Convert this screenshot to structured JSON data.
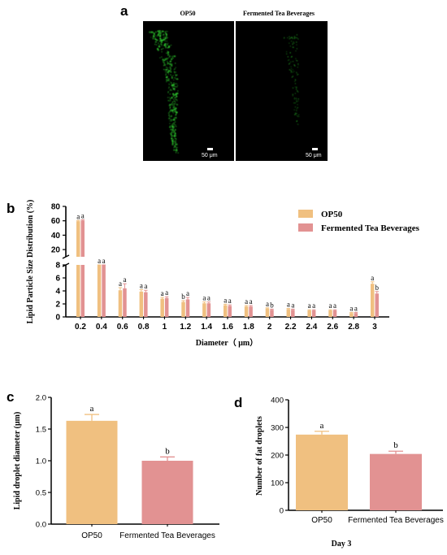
{
  "colors": {
    "op50": "#f0c080",
    "tea": "#e29292",
    "axis": "#000000",
    "fluorescence": "#2fd02f"
  },
  "panel_a": {
    "letter": "a",
    "left_title": "OP50",
    "right_title": "Fermented Tea Beverages",
    "scale_bar_label": "50 μm"
  },
  "chart_data": [
    {
      "id": "b",
      "panel_letter": "b",
      "type": "bar",
      "ylabel": "Lipid Particle Size Distribution (%)",
      "xlabel": "Diameter（ μm）",
      "categories": [
        "0.2",
        "0.4",
        "0.6",
        "0.8",
        "1",
        "1.2",
        "1.4",
        "1.6",
        "1.8",
        "2",
        "2.2",
        "2.4",
        "2.6",
        "2.8",
        "3"
      ],
      "series": [
        {
          "name": "OP50",
          "values": [
            59.5,
            8.0,
            4.1,
            3.9,
            2.8,
            2.3,
            2.1,
            1.8,
            1.6,
            1.3,
            1.2,
            1.0,
            1.0,
            0.6,
            5.1
          ],
          "errors": [
            1.0,
            0.4,
            0.4,
            0.3,
            0.2,
            0.2,
            0.2,
            0.15,
            0.15,
            0.1,
            0.1,
            0.1,
            0.1,
            0.1,
            0.3
          ]
        },
        {
          "name": "Fermented Tea Beverages",
          "values": [
            60.5,
            8.0,
            4.4,
            3.8,
            2.9,
            2.7,
            2.1,
            1.7,
            1.6,
            1.1,
            1.1,
            1.0,
            1.0,
            0.6,
            3.6
          ],
          "errors": [
            1.0,
            0.4,
            0.7,
            0.3,
            0.2,
            0.3,
            0.2,
            0.15,
            0.15,
            0.1,
            0.1,
            0.1,
            0.1,
            0.1,
            0.3
          ]
        }
      ],
      "significance": [
        [
          "a",
          "a"
        ],
        [
          "a",
          "a"
        ],
        [
          "a",
          "a"
        ],
        [
          "a",
          "a"
        ],
        [
          "a",
          "a"
        ],
        [
          "b",
          "a"
        ],
        [
          "a",
          "a"
        ],
        [
          "a",
          "a"
        ],
        [
          "a",
          "a"
        ],
        [
          "a",
          "b"
        ],
        [
          "a",
          "a"
        ],
        [
          "a",
          "a"
        ],
        [
          "a",
          "a"
        ],
        [
          "a",
          "a"
        ],
        [
          "a",
          "b"
        ]
      ],
      "y_axis_break": {
        "lower_range": [
          0,
          8
        ],
        "upper_range": [
          10,
          80
        ]
      },
      "yticks_lower": [
        0,
        2,
        4,
        6,
        8
      ],
      "yticks_upper": [
        20,
        40,
        60,
        80
      ],
      "legend": {
        "placement": "right",
        "entries": [
          "OP50",
          "Fermented Tea Beverages"
        ]
      }
    },
    {
      "id": "c",
      "panel_letter": "c",
      "type": "bar",
      "ylabel": "Lipid droplet diameter (μm)",
      "categories": [
        "OP50",
        "Fermented Tea Beverages"
      ],
      "values": [
        1.63,
        1.0
      ],
      "errors": [
        0.1,
        0.06
      ],
      "significance": [
        "a",
        "b"
      ],
      "ylim": [
        0.0,
        2.0
      ],
      "yticks": [
        "0.0",
        "0.5",
        "1.0",
        "1.5",
        "2.0"
      ]
    },
    {
      "id": "d",
      "panel_letter": "d",
      "type": "bar",
      "ylabel": "Number of fat droplets",
      "xlabel": "Day 3",
      "categories": [
        "OP50",
        "Fermented Tea Beverages"
      ],
      "values": [
        274,
        204
      ],
      "errors": [
        12,
        10
      ],
      "significance": [
        "a",
        "b"
      ],
      "ylim": [
        0,
        400
      ],
      "yticks": [
        "0",
        "100",
        "200",
        "300",
        "400"
      ]
    }
  ]
}
